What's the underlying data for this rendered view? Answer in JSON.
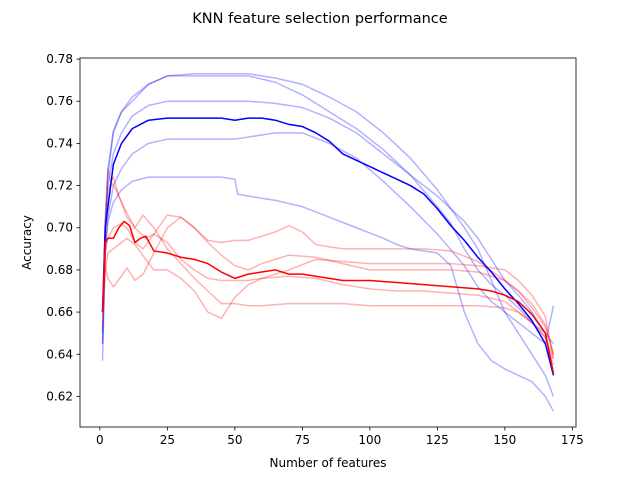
{
  "chart_data": {
    "type": "line",
    "title": "KNN feature selection performance",
    "xlabel": "Number of features",
    "ylabel": "Accuracy",
    "xlim": [
      -7.35,
      176.35
    ],
    "ylim": [
      0.6055,
      0.7805
    ],
    "xticks": [
      0,
      25,
      50,
      75,
      100,
      125,
      150,
      175
    ],
    "yticks": [
      0.62,
      0.64,
      0.66,
      0.68,
      0.7,
      0.72,
      0.74,
      0.76,
      0.78
    ],
    "ytick_labels": [
      "0.62",
      "0.64",
      "0.66",
      "0.68",
      "0.70",
      "0.72",
      "0.74",
      "0.76",
      "0.78"
    ],
    "grid": false,
    "legend": "none",
    "series": [
      {
        "group": "blue-fold",
        "color": "#0000ff",
        "opacity": 0.3,
        "x": [
          1,
          2,
          3,
          5,
          8,
          12,
          18,
          25,
          35,
          45,
          55,
          65,
          75,
          85,
          95,
          105,
          115,
          125,
          135,
          140,
          145,
          150,
          155,
          160,
          165,
          168
        ],
        "y": [
          0.661,
          0.7,
          0.725,
          0.745,
          0.755,
          0.762,
          0.768,
          0.772,
          0.773,
          0.773,
          0.773,
          0.771,
          0.768,
          0.762,
          0.755,
          0.745,
          0.733,
          0.718,
          0.7,
          0.69,
          0.675,
          0.66,
          0.65,
          0.64,
          0.63,
          0.62
        ]
      },
      {
        "group": "blue-fold",
        "color": "#0000ff",
        "opacity": 0.3,
        "x": [
          1,
          2,
          3,
          5,
          8,
          12,
          18,
          25,
          35,
          45,
          55,
          65,
          75,
          85,
          95,
          105,
          115,
          125,
          130,
          135,
          140,
          145,
          150,
          155,
          160,
          165,
          168
        ],
        "y": [
          0.65,
          0.705,
          0.728,
          0.746,
          0.755,
          0.76,
          0.768,
          0.772,
          0.772,
          0.772,
          0.772,
          0.769,
          0.763,
          0.755,
          0.747,
          0.737,
          0.725,
          0.71,
          0.702,
          0.69,
          0.68,
          0.673,
          0.668,
          0.662,
          0.655,
          0.65,
          0.645
        ]
      },
      {
        "group": "blue-fold",
        "color": "#0000ff",
        "opacity": 0.3,
        "x": [
          1,
          2,
          3,
          5,
          8,
          12,
          18,
          25,
          35,
          45,
          55,
          65,
          75,
          85,
          95,
          105,
          115,
          125,
          135,
          140,
          145,
          150,
          155,
          160,
          165,
          168
        ],
        "y": [
          0.645,
          0.7,
          0.72,
          0.735,
          0.745,
          0.753,
          0.758,
          0.76,
          0.76,
          0.76,
          0.76,
          0.759,
          0.757,
          0.752,
          0.745,
          0.735,
          0.725,
          0.715,
          0.703,
          0.695,
          0.685,
          0.675,
          0.668,
          0.66,
          0.65,
          0.63
        ]
      },
      {
        "group": "blue-fold",
        "color": "#0000ff",
        "opacity": 0.3,
        "x": [
          1,
          2,
          3,
          5,
          8,
          12,
          18,
          25,
          35,
          45,
          50,
          55,
          65,
          75,
          85,
          95,
          105,
          115,
          125,
          135,
          140,
          145,
          150,
          155,
          160,
          165,
          168
        ],
        "y": [
          0.637,
          0.688,
          0.705,
          0.72,
          0.728,
          0.735,
          0.74,
          0.742,
          0.742,
          0.742,
          0.742,
          0.743,
          0.745,
          0.745,
          0.74,
          0.733,
          0.722,
          0.71,
          0.697,
          0.682,
          0.672,
          0.665,
          0.66,
          0.655,
          0.65,
          0.645,
          0.663
        ]
      },
      {
        "group": "blue-fold",
        "color": "#0000ff",
        "opacity": 0.3,
        "x": [
          1,
          2,
          3,
          5,
          8,
          12,
          18,
          25,
          35,
          45,
          50,
          51,
          55,
          65,
          75,
          85,
          95,
          105,
          110,
          115,
          125,
          130,
          135,
          140,
          145,
          150,
          155,
          160,
          165,
          168
        ],
        "y": [
          0.645,
          0.69,
          0.703,
          0.712,
          0.718,
          0.722,
          0.724,
          0.724,
          0.724,
          0.724,
          0.723,
          0.716,
          0.715,
          0.713,
          0.71,
          0.705,
          0.7,
          0.695,
          0.692,
          0.69,
          0.688,
          0.682,
          0.66,
          0.645,
          0.637,
          0.633,
          0.63,
          0.627,
          0.62,
          0.613
        ]
      },
      {
        "group": "red-fold",
        "color": "#ff0000",
        "opacity": 0.3,
        "x": [
          1,
          2,
          3,
          4,
          6,
          8,
          10,
          13,
          16,
          20,
          25,
          30,
          35,
          40,
          45,
          50,
          55,
          60,
          70,
          80,
          90,
          100,
          110,
          120,
          130,
          140,
          150,
          155,
          160,
          165,
          168
        ],
        "y": [
          0.66,
          0.7,
          0.728,
          0.722,
          0.718,
          0.712,
          0.705,
          0.7,
          0.706,
          0.7,
          0.69,
          0.683,
          0.676,
          0.67,
          0.664,
          0.664,
          0.663,
          0.663,
          0.664,
          0.664,
          0.664,
          0.663,
          0.663,
          0.663,
          0.663,
          0.663,
          0.662,
          0.66,
          0.655,
          0.648,
          0.638
        ]
      },
      {
        "group": "red-fold",
        "color": "#ff0000",
        "opacity": 0.3,
        "x": [
          1,
          2,
          3,
          5,
          7,
          10,
          13,
          17,
          20,
          25,
          30,
          35,
          40,
          45,
          50,
          55,
          60,
          70,
          80,
          90,
          100,
          110,
          120,
          130,
          140,
          150,
          155,
          160,
          165,
          168
        ],
        "y": [
          0.66,
          0.69,
          0.718,
          0.724,
          0.715,
          0.707,
          0.7,
          0.695,
          0.697,
          0.693,
          0.685,
          0.68,
          0.676,
          0.675,
          0.675,
          0.675,
          0.676,
          0.677,
          0.676,
          0.673,
          0.671,
          0.67,
          0.67,
          0.669,
          0.668,
          0.665,
          0.66,
          0.655,
          0.648,
          0.635
        ]
      },
      {
        "group": "red-fold",
        "color": "#ff0000",
        "opacity": 0.3,
        "x": [
          1,
          2,
          3,
          5,
          8,
          10,
          13,
          16,
          20,
          25,
          30,
          35,
          40,
          45,
          50,
          55,
          60,
          65,
          70,
          75,
          80,
          90,
          100,
          110,
          120,
          130,
          140,
          150,
          155,
          160,
          165,
          168
        ],
        "y": [
          0.652,
          0.688,
          0.695,
          0.7,
          0.702,
          0.7,
          0.693,
          0.69,
          0.697,
          0.706,
          0.705,
          0.7,
          0.694,
          0.693,
          0.694,
          0.694,
          0.696,
          0.698,
          0.701,
          0.698,
          0.692,
          0.69,
          0.69,
          0.69,
          0.69,
          0.689,
          0.684,
          0.675,
          0.67,
          0.662,
          0.653,
          0.64
        ]
      },
      {
        "group": "red-fold",
        "color": "#ff0000",
        "opacity": 0.3,
        "x": [
          1,
          2,
          3,
          5,
          8,
          10,
          13,
          17,
          20,
          25,
          30,
          35,
          40,
          45,
          50,
          55,
          60,
          70,
          80,
          90,
          100,
          110,
          120,
          130,
          140,
          150,
          155,
          160,
          165,
          168
        ],
        "y": [
          0.66,
          0.68,
          0.688,
          0.69,
          0.693,
          0.695,
          0.692,
          0.685,
          0.68,
          0.68,
          0.676,
          0.67,
          0.66,
          0.657,
          0.667,
          0.673,
          0.676,
          0.68,
          0.685,
          0.684,
          0.683,
          0.683,
          0.683,
          0.683,
          0.682,
          0.68,
          0.675,
          0.668,
          0.658,
          0.638
        ]
      },
      {
        "group": "red-fold",
        "color": "#ff0000",
        "opacity": 0.3,
        "x": [
          1,
          2,
          3,
          5,
          8,
          10,
          13,
          16,
          20,
          25,
          30,
          35,
          40,
          45,
          50,
          55,
          60,
          70,
          80,
          90,
          100,
          110,
          120,
          130,
          140,
          150,
          155,
          160,
          165,
          168
        ],
        "y": [
          0.66,
          0.682,
          0.676,
          0.672,
          0.677,
          0.681,
          0.675,
          0.678,
          0.688,
          0.7,
          0.705,
          0.7,
          0.693,
          0.687,
          0.682,
          0.68,
          0.683,
          0.687,
          0.686,
          0.683,
          0.68,
          0.68,
          0.68,
          0.68,
          0.679,
          0.675,
          0.67,
          0.664,
          0.654,
          0.64
        ]
      },
      {
        "group": "blue-mean",
        "color": "#0000ff",
        "opacity": 1,
        "x": [
          1,
          2,
          3,
          5,
          8,
          12,
          18,
          25,
          35,
          45,
          50,
          55,
          60,
          65,
          70,
          75,
          80,
          85,
          90,
          95,
          100,
          105,
          110,
          115,
          120,
          125,
          130,
          135,
          140,
          145,
          150,
          155,
          160,
          165,
          168
        ],
        "y": [
          0.66,
          0.7,
          0.71,
          0.73,
          0.74,
          0.747,
          0.751,
          0.752,
          0.752,
          0.752,
          0.751,
          0.752,
          0.752,
          0.751,
          0.749,
          0.748,
          0.745,
          0.741,
          0.735,
          0.732,
          0.729,
          0.726,
          0.723,
          0.72,
          0.716,
          0.709,
          0.701,
          0.694,
          0.686,
          0.679,
          0.671,
          0.664,
          0.656,
          0.645,
          0.63
        ]
      },
      {
        "group": "red-mean",
        "color": "#ff0000",
        "opacity": 1,
        "x": [
          1,
          2,
          3,
          5,
          7,
          9,
          11,
          13,
          15,
          17,
          20,
          25,
          30,
          35,
          40,
          45,
          50,
          55,
          60,
          65,
          70,
          75,
          80,
          90,
          100,
          110,
          120,
          130,
          140,
          145,
          150,
          155,
          160,
          165,
          168
        ],
        "y": [
          0.66,
          0.693,
          0.695,
          0.695,
          0.7,
          0.703,
          0.701,
          0.693,
          0.695,
          0.696,
          0.689,
          0.688,
          0.686,
          0.685,
          0.683,
          0.679,
          0.676,
          0.678,
          0.679,
          0.68,
          0.678,
          0.678,
          0.677,
          0.675,
          0.675,
          0.674,
          0.673,
          0.672,
          0.671,
          0.67,
          0.668,
          0.665,
          0.659,
          0.65,
          0.631
        ]
      }
    ]
  }
}
